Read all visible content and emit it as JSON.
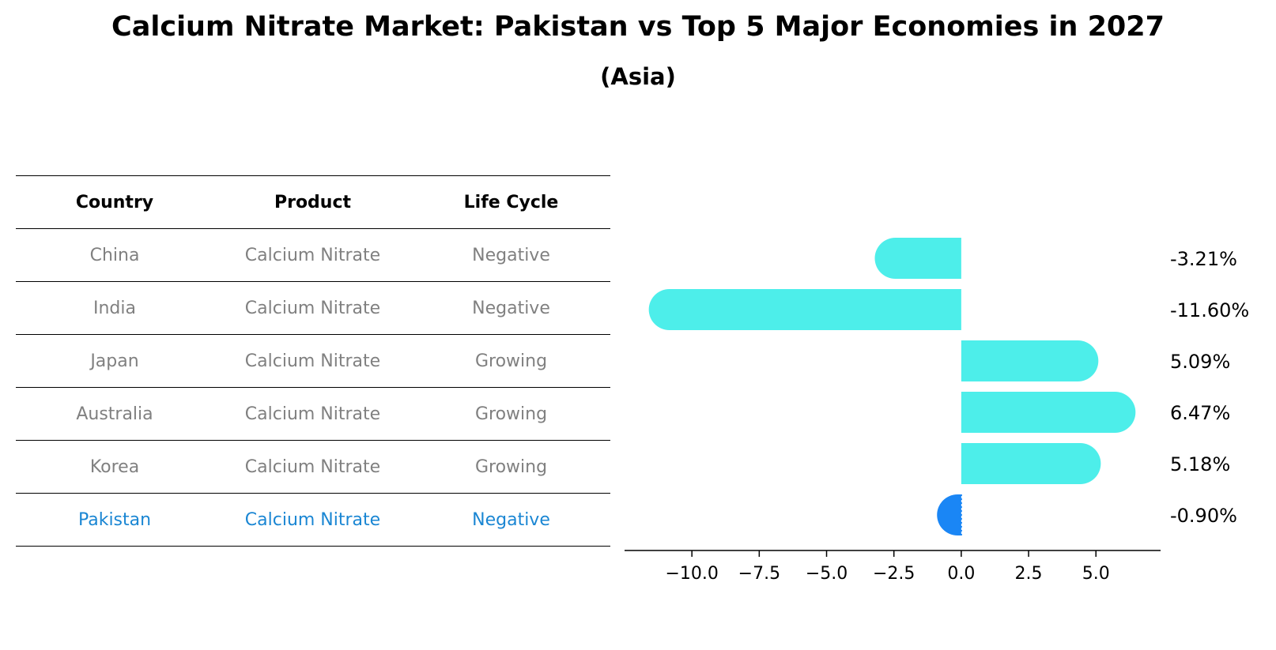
{
  "title": "Calcium Nitrate Market: Pakistan vs Top 5 Major Economies in 2027",
  "subtitle": "(Asia)",
  "table": {
    "headers": [
      "Country",
      "Product",
      "Life Cycle"
    ],
    "rows": [
      {
        "country": "China",
        "product": "Calcium Nitrate",
        "life_cycle": "Negative"
      },
      {
        "country": "India",
        "product": "Calcium Nitrate",
        "life_cycle": "Negative"
      },
      {
        "country": "Japan",
        "product": "Calcium Nitrate",
        "life_cycle": "Growing"
      },
      {
        "country": "Australia",
        "product": "Calcium Nitrate",
        "life_cycle": "Growing"
      },
      {
        "country": "Korea",
        "product": "Calcium Nitrate",
        "life_cycle": "Growing"
      },
      {
        "country": "Pakistan",
        "product": "Calcium Nitrate",
        "life_cycle": "Negative"
      }
    ]
  },
  "chart_data": {
    "type": "bar",
    "orientation": "horizontal",
    "categories": [
      "China",
      "India",
      "Japan",
      "Australia",
      "Korea",
      "Pakistan"
    ],
    "values": [
      -3.21,
      -11.6,
      5.09,
      6.47,
      5.18,
      -0.9
    ],
    "value_labels": [
      "-3.21%",
      "-11.60%",
      "5.09%",
      "6.47%",
      "5.18%",
      "-0.90%"
    ],
    "xlim": [
      -12.5,
      7.4
    ],
    "xticks": [
      -10.0,
      -7.5,
      -5.0,
      -2.5,
      0.0,
      2.5,
      5.0
    ],
    "xtick_labels": [
      "−10.0",
      "−7.5",
      "−5.0",
      "−2.5",
      "0.0",
      "2.5",
      "5.0"
    ],
    "grid": false,
    "colors": {
      "bar": "#4deeea",
      "highlight_bar": "#1a86f5",
      "highlight_text": "#1a86d3",
      "muted_text": "#808080"
    },
    "highlight_index": 5
  }
}
